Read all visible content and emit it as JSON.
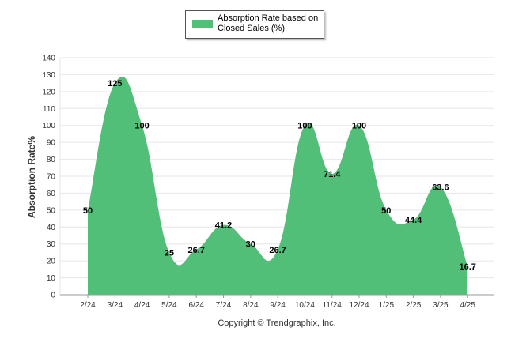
{
  "chart_data": {
    "type": "area",
    "categories": [
      "2/24",
      "3/24",
      "4/24",
      "5/24",
      "6/24",
      "7/24",
      "8/24",
      "9/24",
      "10/24",
      "11/24",
      "12/24",
      "1/25",
      "2/25",
      "3/25",
      "4/25"
    ],
    "series": [
      {
        "name": "Absorption Rate based on Closed Sales (%)",
        "values": [
          50,
          125,
          100,
          25,
          26.7,
          41.2,
          30,
          26.7,
          100,
          71.4,
          100,
          50,
          44.4,
          63.6,
          16.7
        ],
        "labels": [
          "50",
          "125",
          "100",
          "25",
          "26.7",
          "41.2",
          "30",
          "26.7",
          "100",
          "71.4",
          "100",
          "50",
          "44.4",
          "63.6",
          "16.7"
        ]
      }
    ],
    "ylabel": "Absorption Rate%",
    "xlabel": "",
    "ylim": [
      0,
      140
    ],
    "yticks": [
      0,
      10,
      20,
      30,
      40,
      50,
      60,
      70,
      80,
      90,
      100,
      110,
      120,
      130,
      140
    ],
    "grid": true,
    "legend_position": "top-center"
  },
  "legend_label": "Absorption Rate based on Closed Sales (%)",
  "footer_text": "Copyright © Trendgraphix, Inc.",
  "colors": {
    "series": "#52BF78",
    "grid": "#e6e6e6",
    "axis": "#999999"
  }
}
